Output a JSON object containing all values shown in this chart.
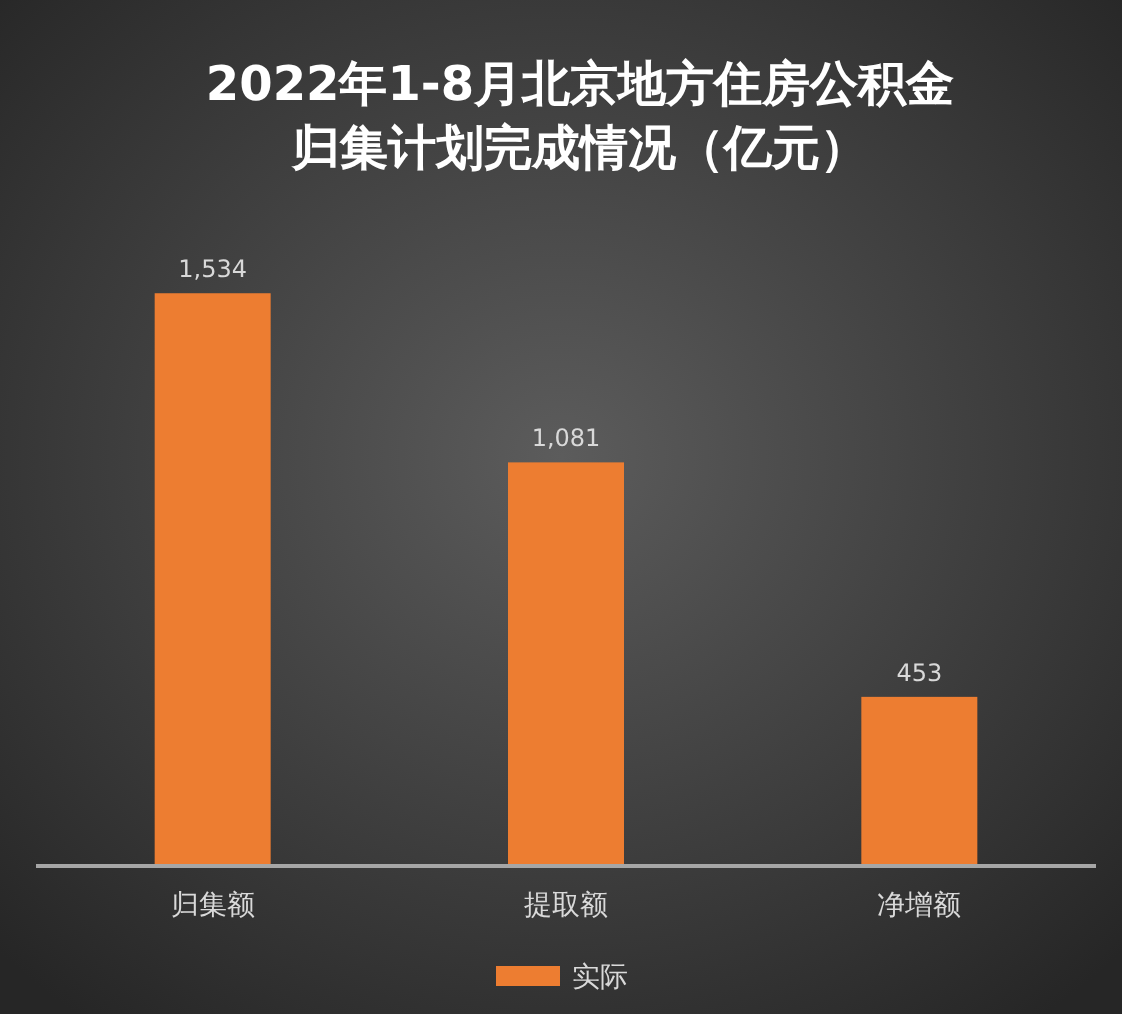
{
  "chart_data": {
    "type": "bar",
    "title": "2022年1-8月北京地方住房公积金归集计划完成情况（亿元）",
    "categories": [
      "归集额",
      "提取额",
      "净增额"
    ],
    "series": [
      {
        "name": "实际",
        "color": "#ed7d31",
        "values": [
          1534,
          1081,
          453
        ],
        "value_labels": [
          "1,534",
          "1,081",
          "453"
        ]
      }
    ],
    "legend": "bottom"
  }
}
